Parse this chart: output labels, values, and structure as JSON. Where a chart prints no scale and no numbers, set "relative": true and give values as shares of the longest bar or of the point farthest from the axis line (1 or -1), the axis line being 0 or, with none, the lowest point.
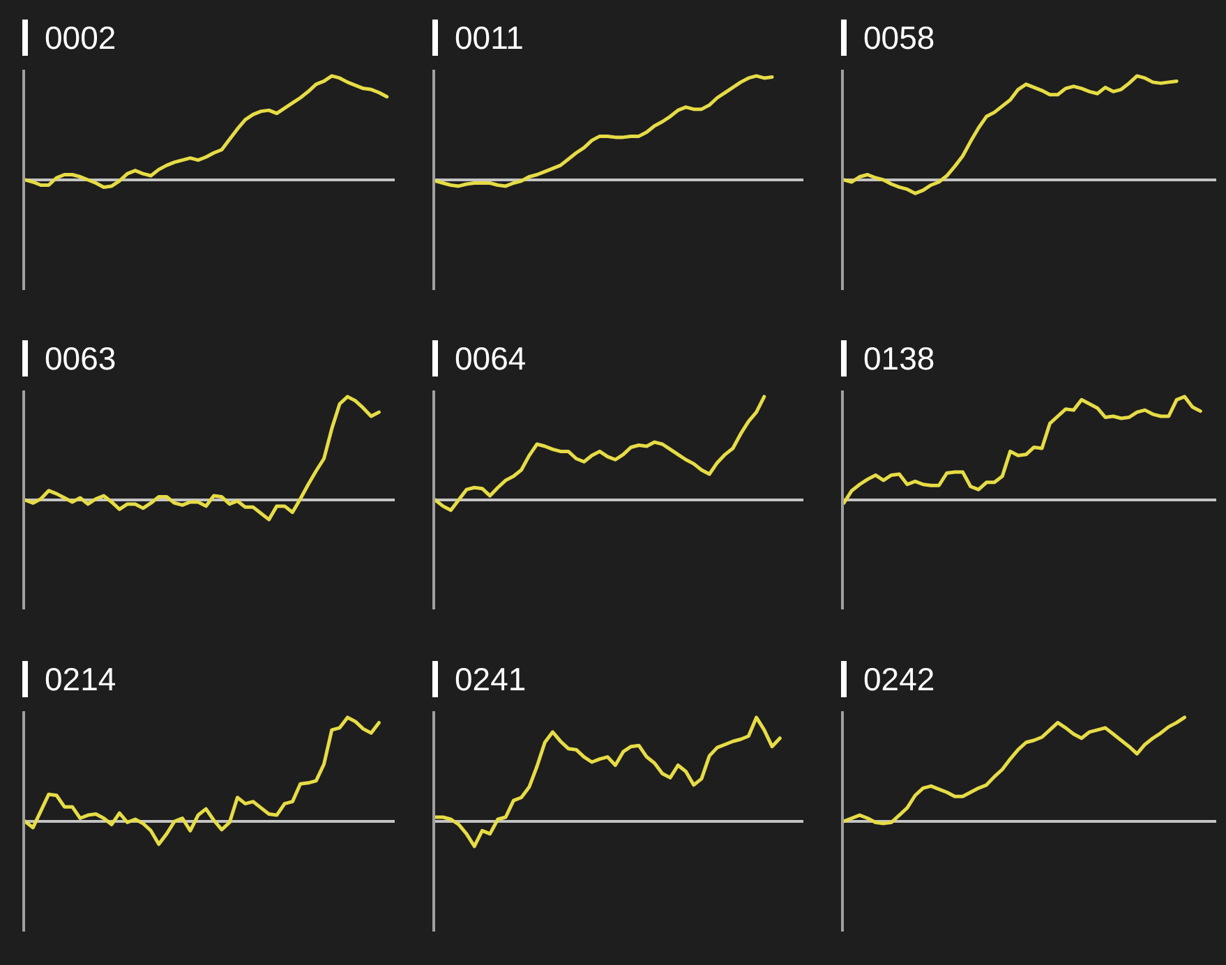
{
  "chart_data": [
    {
      "type": "line",
      "title": "0002",
      "relative": true,
      "categories": [
        null,
        null,
        null,
        null,
        null,
        null,
        null,
        null,
        null,
        null,
        null,
        null,
        null,
        null,
        null,
        null,
        null,
        null,
        null,
        null,
        null,
        null,
        null,
        null,
        null,
        null,
        null,
        null,
        null,
        null,
        null,
        null,
        null,
        null,
        null,
        null,
        null,
        null,
        null,
        null,
        null,
        null,
        null,
        null,
        null,
        null,
        null,
        null
      ],
      "series": [
        {
          "color": "#e6dc46",
          "values": [
            0.0,
            -0.02,
            -0.05,
            -0.05,
            0.02,
            0.05,
            0.05,
            0.03,
            0.0,
            -0.03,
            -0.07,
            -0.06,
            -0.01,
            0.06,
            0.09,
            0.06,
            0.04,
            0.1,
            0.14,
            0.17,
            0.19,
            0.21,
            0.19,
            0.22,
            0.26,
            0.29,
            0.39,
            0.49,
            0.58,
            0.63,
            0.66,
            0.67,
            0.64,
            0.69,
            0.74,
            0.79,
            0.85,
            0.92,
            0.95,
            1.0,
            0.98,
            0.94,
            0.91,
            0.88,
            0.87,
            0.84,
            0.8,
            null
          ]
        }
      ]
    },
    {
      "type": "line",
      "title": "0011",
      "relative": true,
      "categories": [
        null,
        null,
        null,
        null,
        null,
        null,
        null,
        null,
        null,
        null,
        null,
        null,
        null,
        null,
        null,
        null,
        null,
        null,
        null,
        null,
        null,
        null,
        null,
        null,
        null,
        null,
        null,
        null,
        null,
        null,
        null,
        null,
        null,
        null,
        null,
        null,
        null,
        null,
        null,
        null,
        null,
        null,
        null,
        null,
        null,
        null,
        null,
        null
      ],
      "series": [
        {
          "color": "#e6dc46",
          "values": [
            -0.01,
            -0.03,
            -0.05,
            -0.06,
            -0.04,
            -0.03,
            -0.03,
            -0.03,
            -0.05,
            -0.06,
            -0.03,
            -0.01,
            0.03,
            0.05,
            0.08,
            0.11,
            0.14,
            0.2,
            0.26,
            0.31,
            0.38,
            0.42,
            0.42,
            0.41,
            0.41,
            0.42,
            0.42,
            0.46,
            0.52,
            0.56,
            0.61,
            0.67,
            0.7,
            0.68,
            0.68,
            0.72,
            0.79,
            0.84,
            0.89,
            0.94,
            0.98,
            1.0,
            0.98,
            0.99,
            null,
            null,
            null,
            null
          ]
        }
      ]
    },
    {
      "type": "line",
      "title": "0058",
      "relative": true,
      "categories": [
        null,
        null,
        null,
        null,
        null,
        null,
        null,
        null,
        null,
        null,
        null,
        null,
        null,
        null,
        null,
        null,
        null,
        null,
        null,
        null,
        null,
        null,
        null,
        null,
        null,
        null,
        null,
        null,
        null,
        null,
        null,
        null,
        null,
        null,
        null,
        null,
        null,
        null,
        null,
        null,
        null,
        null,
        null,
        null,
        null,
        null,
        null,
        null
      ],
      "series": [
        {
          "color": "#e6dc46",
          "values": [
            0.0,
            -0.02,
            0.03,
            0.05,
            0.02,
            0.0,
            -0.04,
            -0.07,
            -0.09,
            -0.13,
            -0.1,
            -0.05,
            -0.02,
            0.04,
            0.13,
            0.23,
            0.37,
            0.5,
            0.61,
            0.65,
            0.71,
            0.77,
            0.87,
            0.92,
            0.89,
            0.86,
            0.82,
            0.82,
            0.88,
            0.9,
            0.88,
            0.85,
            0.83,
            0.89,
            0.85,
            0.87,
            0.93,
            1.0,
            0.98,
            0.94,
            0.93,
            0.94,
            0.95,
            null,
            null,
            null,
            null,
            null
          ]
        }
      ]
    },
    {
      "type": "line",
      "title": "0063",
      "relative": true,
      "categories": [
        null,
        null,
        null,
        null,
        null,
        null,
        null,
        null,
        null,
        null,
        null,
        null,
        null,
        null,
        null,
        null,
        null,
        null,
        null,
        null,
        null,
        null,
        null,
        null,
        null,
        null,
        null,
        null,
        null,
        null,
        null,
        null,
        null,
        null,
        null,
        null,
        null,
        null,
        null,
        null,
        null,
        null,
        null,
        null,
        null,
        null,
        null,
        null
      ],
      "series": [
        {
          "color": "#e6dc46",
          "values": [
            0.0,
            -0.03,
            0.01,
            0.09,
            0.06,
            0.02,
            -0.02,
            0.02,
            -0.04,
            0.01,
            0.04,
            -0.02,
            -0.09,
            -0.04,
            -0.04,
            -0.08,
            -0.03,
            0.03,
            0.03,
            -0.03,
            -0.05,
            -0.02,
            -0.02,
            -0.06,
            0.04,
            0.03,
            -0.04,
            -0.01,
            -0.07,
            -0.07,
            -0.13,
            -0.19,
            -0.06,
            -0.06,
            -0.12,
            0.01,
            0.15,
            0.28,
            0.4,
            0.69,
            0.93,
            1.0,
            0.96,
            0.89,
            0.81,
            0.85,
            null,
            null
          ]
        }
      ]
    },
    {
      "type": "line",
      "title": "0064",
      "relative": true,
      "categories": [
        null,
        null,
        null,
        null,
        null,
        null,
        null,
        null,
        null,
        null,
        null,
        null,
        null,
        null,
        null,
        null,
        null,
        null,
        null,
        null,
        null,
        null,
        null,
        null,
        null,
        null,
        null,
        null,
        null,
        null,
        null,
        null,
        null,
        null,
        null,
        null,
        null,
        null,
        null,
        null,
        null,
        null,
        null,
        null,
        null,
        null,
        null,
        null
      ],
      "series": [
        {
          "color": "#e6dc46",
          "values": [
            0.0,
            -0.06,
            -0.1,
            0.0,
            0.1,
            0.12,
            0.11,
            0.04,
            0.12,
            0.19,
            0.23,
            0.29,
            0.43,
            0.54,
            0.52,
            0.49,
            0.47,
            0.47,
            0.4,
            0.37,
            0.43,
            0.47,
            0.42,
            0.39,
            0.44,
            0.51,
            0.53,
            0.52,
            0.56,
            0.54,
            0.49,
            0.44,
            0.39,
            0.35,
            0.29,
            0.25,
            0.36,
            0.44,
            0.5,
            0.64,
            0.76,
            0.85,
            1.0,
            null,
            null,
            null,
            null,
            null
          ]
        }
      ]
    },
    {
      "type": "line",
      "title": "0138",
      "relative": true,
      "categories": [
        null,
        null,
        null,
        null,
        null,
        null,
        null,
        null,
        null,
        null,
        null,
        null,
        null,
        null,
        null,
        null,
        null,
        null,
        null,
        null,
        null,
        null,
        null,
        null,
        null,
        null,
        null,
        null,
        null,
        null,
        null,
        null,
        null,
        null,
        null,
        null,
        null,
        null,
        null,
        null,
        null,
        null,
        null,
        null,
        null,
        null,
        null,
        null
      ],
      "series": [
        {
          "color": "#e6dc46",
          "values": [
            -0.03,
            0.09,
            0.15,
            0.2,
            0.24,
            0.19,
            0.24,
            0.25,
            0.15,
            0.18,
            0.15,
            0.14,
            0.14,
            0.26,
            0.27,
            0.27,
            0.13,
            0.1,
            0.17,
            0.17,
            0.23,
            0.47,
            0.43,
            0.44,
            0.51,
            0.5,
            0.74,
            0.81,
            0.88,
            0.87,
            0.97,
            0.93,
            0.89,
            0.8,
            0.81,
            0.79,
            0.8,
            0.85,
            0.87,
            0.83,
            0.81,
            0.81,
            0.97,
            1.0,
            0.9,
            0.86,
            null,
            null
          ]
        }
      ]
    },
    {
      "type": "line",
      "title": "0214",
      "relative": true,
      "categories": [
        null,
        null,
        null,
        null,
        null,
        null,
        null,
        null,
        null,
        null,
        null,
        null,
        null,
        null,
        null,
        null,
        null,
        null,
        null,
        null,
        null,
        null,
        null,
        null,
        null,
        null,
        null,
        null,
        null,
        null,
        null,
        null,
        null,
        null,
        null,
        null,
        null,
        null,
        null,
        null,
        null,
        null,
        null,
        null,
        null,
        null,
        null,
        null
      ],
      "series": [
        {
          "color": "#e6dc46",
          "values": [
            0.0,
            -0.06,
            0.1,
            0.26,
            0.25,
            0.14,
            0.14,
            0.03,
            0.06,
            0.07,
            0.03,
            -0.03,
            0.08,
            -0.01,
            0.02,
            -0.02,
            -0.09,
            -0.22,
            -0.12,
            0.0,
            0.03,
            -0.09,
            0.06,
            0.12,
            0.01,
            -0.08,
            -0.01,
            0.23,
            0.17,
            0.19,
            0.13,
            0.07,
            0.06,
            0.17,
            0.19,
            0.36,
            0.37,
            0.39,
            0.55,
            0.88,
            0.9,
            1.0,
            0.96,
            0.89,
            0.85,
            0.95,
            null,
            null
          ]
        }
      ]
    },
    {
      "type": "line",
      "title": "0241",
      "relative": true,
      "categories": [
        null,
        null,
        null,
        null,
        null,
        null,
        null,
        null,
        null,
        null,
        null,
        null,
        null,
        null,
        null,
        null,
        null,
        null,
        null,
        null,
        null,
        null,
        null,
        null,
        null,
        null,
        null,
        null,
        null,
        null,
        null,
        null,
        null,
        null,
        null,
        null,
        null,
        null,
        null,
        null,
        null,
        null,
        null,
        null,
        null,
        null,
        null,
        null
      ],
      "series": [
        {
          "color": "#e6dc46",
          "values": [
            0.04,
            0.04,
            0.02,
            -0.03,
            -0.12,
            -0.24,
            -0.09,
            -0.12,
            0.02,
            0.04,
            0.2,
            0.23,
            0.33,
            0.53,
            0.76,
            0.86,
            0.77,
            0.7,
            0.69,
            0.62,
            0.57,
            0.6,
            0.62,
            0.54,
            0.67,
            0.72,
            0.73,
            0.62,
            0.56,
            0.46,
            0.42,
            0.54,
            0.48,
            0.35,
            0.41,
            0.63,
            0.71,
            0.74,
            0.77,
            0.79,
            0.82,
            1.0,
            0.88,
            0.72,
            0.8,
            null,
            null,
            null
          ]
        }
      ]
    },
    {
      "type": "line",
      "title": "0242",
      "relative": true,
      "categories": [
        null,
        null,
        null,
        null,
        null,
        null,
        null,
        null,
        null,
        null,
        null,
        null,
        null,
        null,
        null,
        null,
        null,
        null,
        null,
        null,
        null,
        null,
        null,
        null,
        null,
        null,
        null,
        null,
        null,
        null,
        null,
        null,
        null,
        null,
        null,
        null,
        null,
        null,
        null,
        null,
        null,
        null,
        null,
        null,
        null,
        null,
        null,
        null
      ],
      "series": [
        {
          "color": "#e6dc46",
          "values": [
            0.0,
            0.03,
            0.06,
            0.03,
            -0.01,
            -0.02,
            -0.01,
            0.06,
            0.13,
            0.25,
            0.32,
            0.34,
            0.31,
            0.28,
            0.24,
            0.24,
            0.28,
            0.32,
            0.35,
            0.43,
            0.5,
            0.6,
            0.69,
            0.76,
            0.78,
            0.81,
            0.88,
            0.95,
            0.9,
            0.84,
            0.8,
            0.86,
            0.88,
            0.9,
            0.84,
            0.78,
            0.72,
            0.65,
            0.74,
            0.8,
            0.85,
            0.91,
            0.95,
            1.0,
            null,
            null,
            null,
            null
          ]
        }
      ]
    }
  ]
}
